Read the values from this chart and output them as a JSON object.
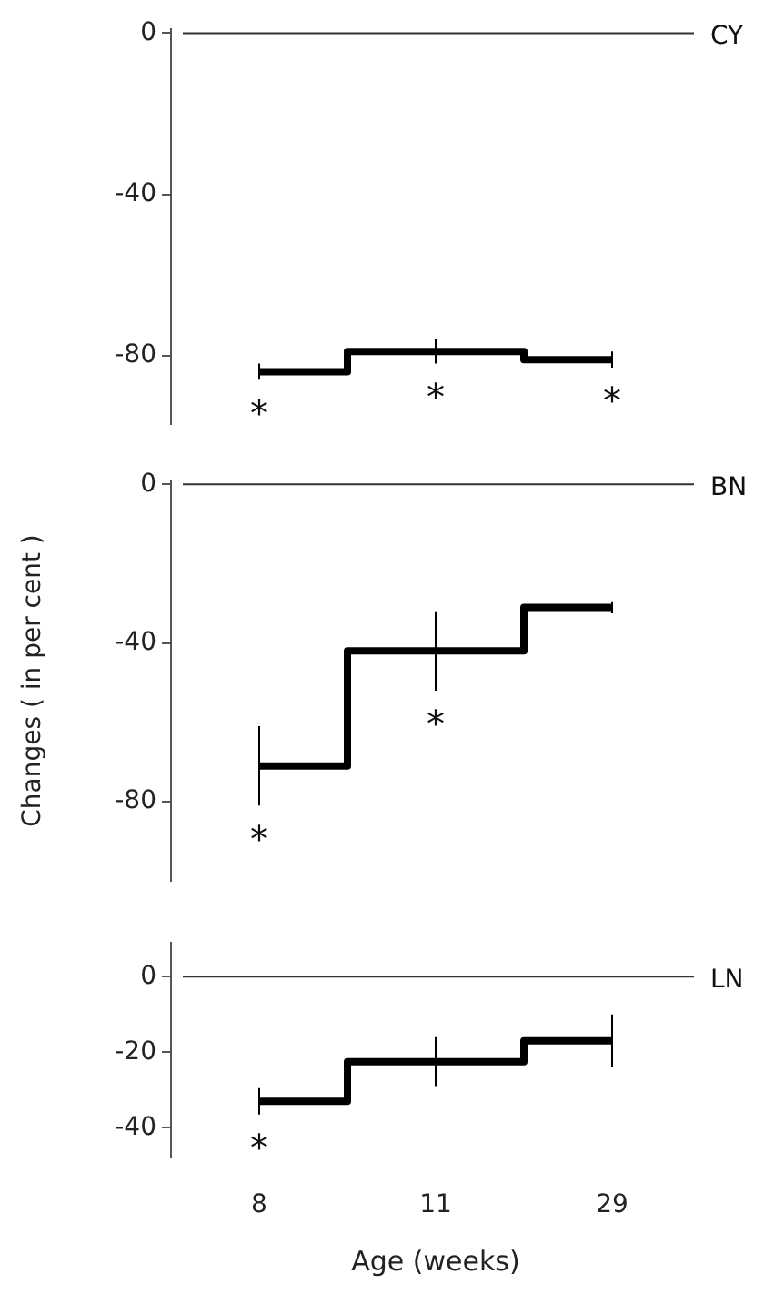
{
  "chart_data": [
    {
      "type": "step",
      "categories": [
        "8",
        "11",
        "29"
      ],
      "ylim": [
        -97,
        1
      ],
      "yticks": [
        0,
        -40,
        -80
      ],
      "tick_labels": "y",
      "series": [
        {
          "color": "#000000",
          "values": [
            -84,
            -79,
            -81
          ],
          "errors": [
            2,
            3,
            2
          ]
        }
      ],
      "ref_lines": [
        {
          "axis": "y",
          "value": 0
        }
      ],
      "annotations": [
        "CY",
        "*",
        "*",
        "*"
      ]
    },
    {
      "type": "step",
      "categories": [
        "8",
        "11",
        "29"
      ],
      "ylim": [
        -100,
        1
      ],
      "yticks": [
        0,
        -40,
        -80
      ],
      "tick_labels": "y",
      "ylabel": "Changes ( in per cent )",
      "series": [
        {
          "color": "#000000",
          "values": [
            -71,
            -42,
            -31
          ],
          "errors": [
            10,
            10,
            1.5
          ]
        }
      ],
      "ref_lines": [
        {
          "axis": "y",
          "value": 0
        }
      ],
      "annotations": [
        "BN",
        "*",
        "*"
      ]
    },
    {
      "type": "step",
      "categories": [
        "8",
        "11",
        "29"
      ],
      "ylim": [
        -48,
        9
      ],
      "yticks": [
        0,
        -20,
        -40
      ],
      "xlabel": "Age (weeks)",
      "series": [
        {
          "color": "#000000",
          "values": [
            -33,
            -22.5,
            -17
          ],
          "errors": [
            3.5,
            6.5,
            7
          ]
        }
      ],
      "ref_lines": [
        {
          "axis": "y",
          "value": 0
        }
      ],
      "annotations": [
        "LN",
        "*"
      ]
    }
  ]
}
